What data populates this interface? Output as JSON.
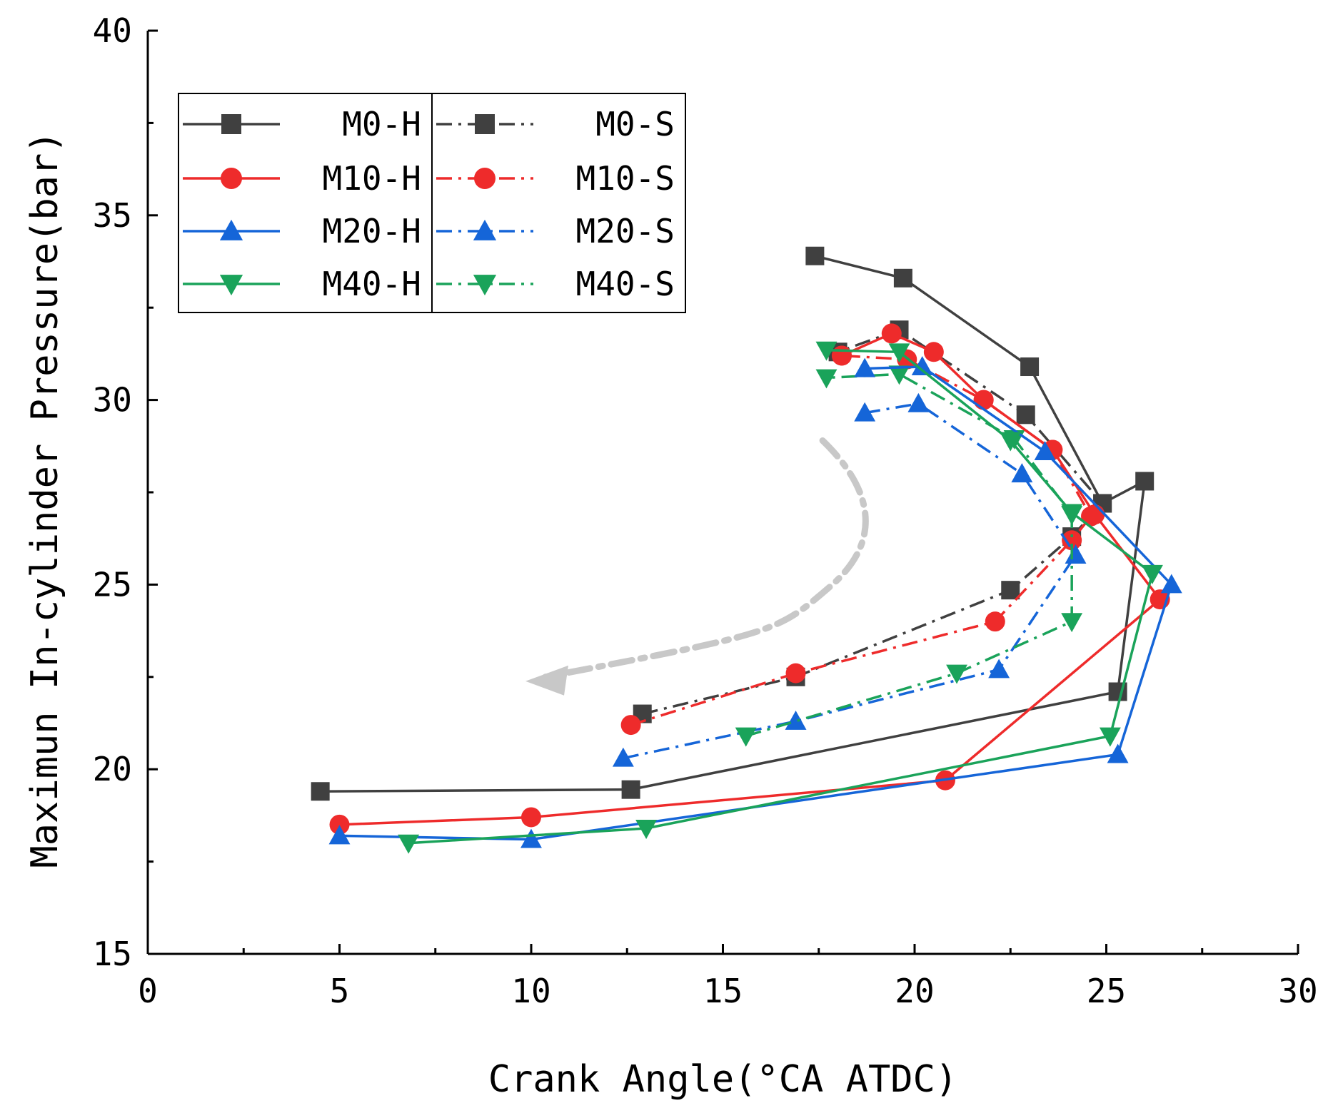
{
  "chart_data": {
    "type": "line",
    "xlabel": "Crank Angle(°CA ATDC)",
    "ylabel": "Maximun In-cylinder Pressure(bar)",
    "xlim": [
      0,
      30
    ],
    "ylim": [
      15,
      40
    ],
    "xticks": [
      0,
      5,
      10,
      15,
      20,
      25,
      30
    ],
    "yticks": [
      15,
      20,
      25,
      30,
      35,
      40
    ],
    "grid": false,
    "legend_position": "top-left",
    "series": [
      {
        "name": "M0-H",
        "color": "#404040",
        "marker": "square",
        "dash": "solid",
        "x": [
          4.5,
          12.6,
          25.3,
          26.0,
          24.9,
          23.0,
          19.7,
          17.4
        ],
        "y": [
          19.4,
          19.45,
          22.1,
          27.8,
          27.2,
          30.9,
          33.3,
          33.9
        ]
      },
      {
        "name": "M10-H",
        "color": "#ee2b2b",
        "marker": "circle",
        "dash": "solid",
        "x": [
          5.0,
          10.0,
          20.8,
          26.4,
          24.7,
          23.6,
          21.8,
          20.5,
          19.4,
          18.1
        ],
        "y": [
          18.5,
          18.7,
          19.7,
          24.6,
          26.9,
          28.65,
          30.0,
          31.3,
          31.8,
          31.2
        ]
      },
      {
        "name": "M20-H",
        "color": "#1565d8",
        "marker": "triangle-up",
        "dash": "solid",
        "x": [
          5.0,
          10.0,
          25.3,
          26.7,
          23.4,
          20.2,
          18.7
        ],
        "y": [
          18.2,
          18.1,
          20.4,
          25.0,
          28.6,
          30.9,
          30.85
        ]
      },
      {
        "name": "M40-H",
        "color": "#1aa35a",
        "marker": "triangle-down",
        "dash": "solid",
        "x": [
          6.8,
          13.0,
          25.1,
          26.2,
          24.1,
          22.5,
          19.6,
          17.7
        ],
        "y": [
          18.0,
          18.4,
          20.9,
          25.3,
          26.95,
          28.9,
          31.3,
          31.35
        ]
      },
      {
        "name": "M0-S",
        "color": "#404040",
        "marker": "square",
        "dash": "dash-dot",
        "x": [
          12.9,
          16.9,
          22.5,
          24.1,
          24.9,
          22.9,
          19.6,
          18.0
        ],
        "y": [
          21.5,
          22.5,
          24.85,
          26.3,
          27.2,
          29.6,
          31.9,
          31.3
        ]
      },
      {
        "name": "M10-S",
        "color": "#ee2b2b",
        "marker": "circle",
        "dash": "dash-dot",
        "x": [
          12.6,
          16.9,
          22.1,
          24.1,
          24.6,
          23.6,
          21.8,
          19.8,
          18.1
        ],
        "y": [
          21.2,
          22.6,
          24.0,
          26.2,
          26.85,
          28.65,
          30.0,
          31.1,
          31.2
        ]
      },
      {
        "name": "M20-S",
        "color": "#1565d8",
        "marker": "triangle-up",
        "dash": "dash-dot",
        "x": [
          12.4,
          16.9,
          22.2,
          24.2,
          22.8,
          20.1,
          18.7
        ],
        "y": [
          20.3,
          21.3,
          22.7,
          25.8,
          28.0,
          29.9,
          29.65
        ]
      },
      {
        "name": "M40-S",
        "color": "#1aa35a",
        "marker": "triangle-down",
        "dash": "dash-dot",
        "x": [
          15.6,
          21.1,
          24.1,
          24.1,
          22.6,
          19.6,
          17.7
        ],
        "y": [
          20.9,
          22.6,
          24.0,
          26.9,
          28.95,
          30.7,
          30.6
        ]
      }
    ],
    "annotation": {
      "type": "curved-arrow",
      "color": "#c8c8c8",
      "dash": "dash-dot",
      "path_data": [
        [
          17.6,
          28.9
        ],
        [
          18.9,
          27.6
        ],
        [
          19.2,
          26.2
        ],
        [
          16.4,
          23.7
        ],
        [
          10.0,
          22.5
        ]
      ]
    }
  }
}
